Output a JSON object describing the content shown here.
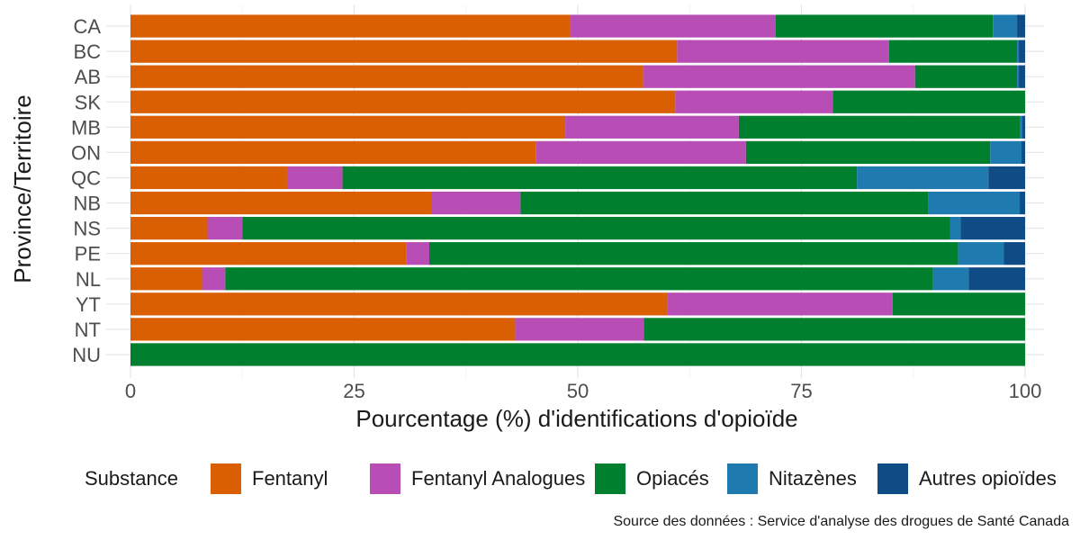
{
  "chart_data": {
    "type": "bar",
    "orientation": "horizontal",
    "stacked": true,
    "title": "",
    "xlabel": "Pourcentage (%) d'identifications d'opioïde",
    "ylabel": "Province/Territoire",
    "xlim": [
      0,
      100
    ],
    "xticks": [
      "0",
      "25",
      "50",
      "75",
      "100"
    ],
    "categories": [
      "CA",
      "BC",
      "AB",
      "SK",
      "MB",
      "ON",
      "QC",
      "NB",
      "NS",
      "PE",
      "NL",
      "YT",
      "NT",
      "NU"
    ],
    "series": [
      {
        "name": "Fentanyl",
        "color": "#D95F02",
        "values": [
          49.1,
          61.1,
          57.3,
          60.9,
          48.6,
          45.3,
          17.5,
          33.7,
          8.6,
          30.8,
          8.0,
          60.0,
          43.0,
          0
        ]
      },
      {
        "name": "Fentanyl Analogues",
        "color": "#B84DB5",
        "values": [
          23.0,
          23.7,
          30.4,
          17.6,
          19.4,
          23.5,
          6.2,
          9.9,
          3.9,
          2.6,
          2.6,
          25.2,
          14.4,
          0
        ]
      },
      {
        "name": "Opiacés",
        "color": "#00802F",
        "values": [
          24.3,
          14.3,
          11.4,
          21.5,
          31.4,
          27.3,
          57.5,
          45.6,
          79.1,
          59.1,
          79.1,
          14.8,
          42.6,
          100
        ]
      },
      {
        "name": "Nitazènes",
        "color": "#1F7BAF",
        "values": [
          2.7,
          0.2,
          0.2,
          0,
          0.3,
          3.5,
          14.7,
          10.2,
          1.2,
          5.1,
          4.0,
          0,
          0,
          0
        ]
      },
      {
        "name": "Autres opioïdes",
        "color": "#0F4C85",
        "values": [
          0.9,
          0.7,
          0.7,
          0,
          0.3,
          0.4,
          4.1,
          0.6,
          7.2,
          2.4,
          6.3,
          0,
          0,
          0
        ]
      }
    ],
    "legend_title": "Substance",
    "legend_position": "bottom",
    "caption": "Source des données : Service d'analyse des drogues de Santé Canada",
    "grid": true
  }
}
